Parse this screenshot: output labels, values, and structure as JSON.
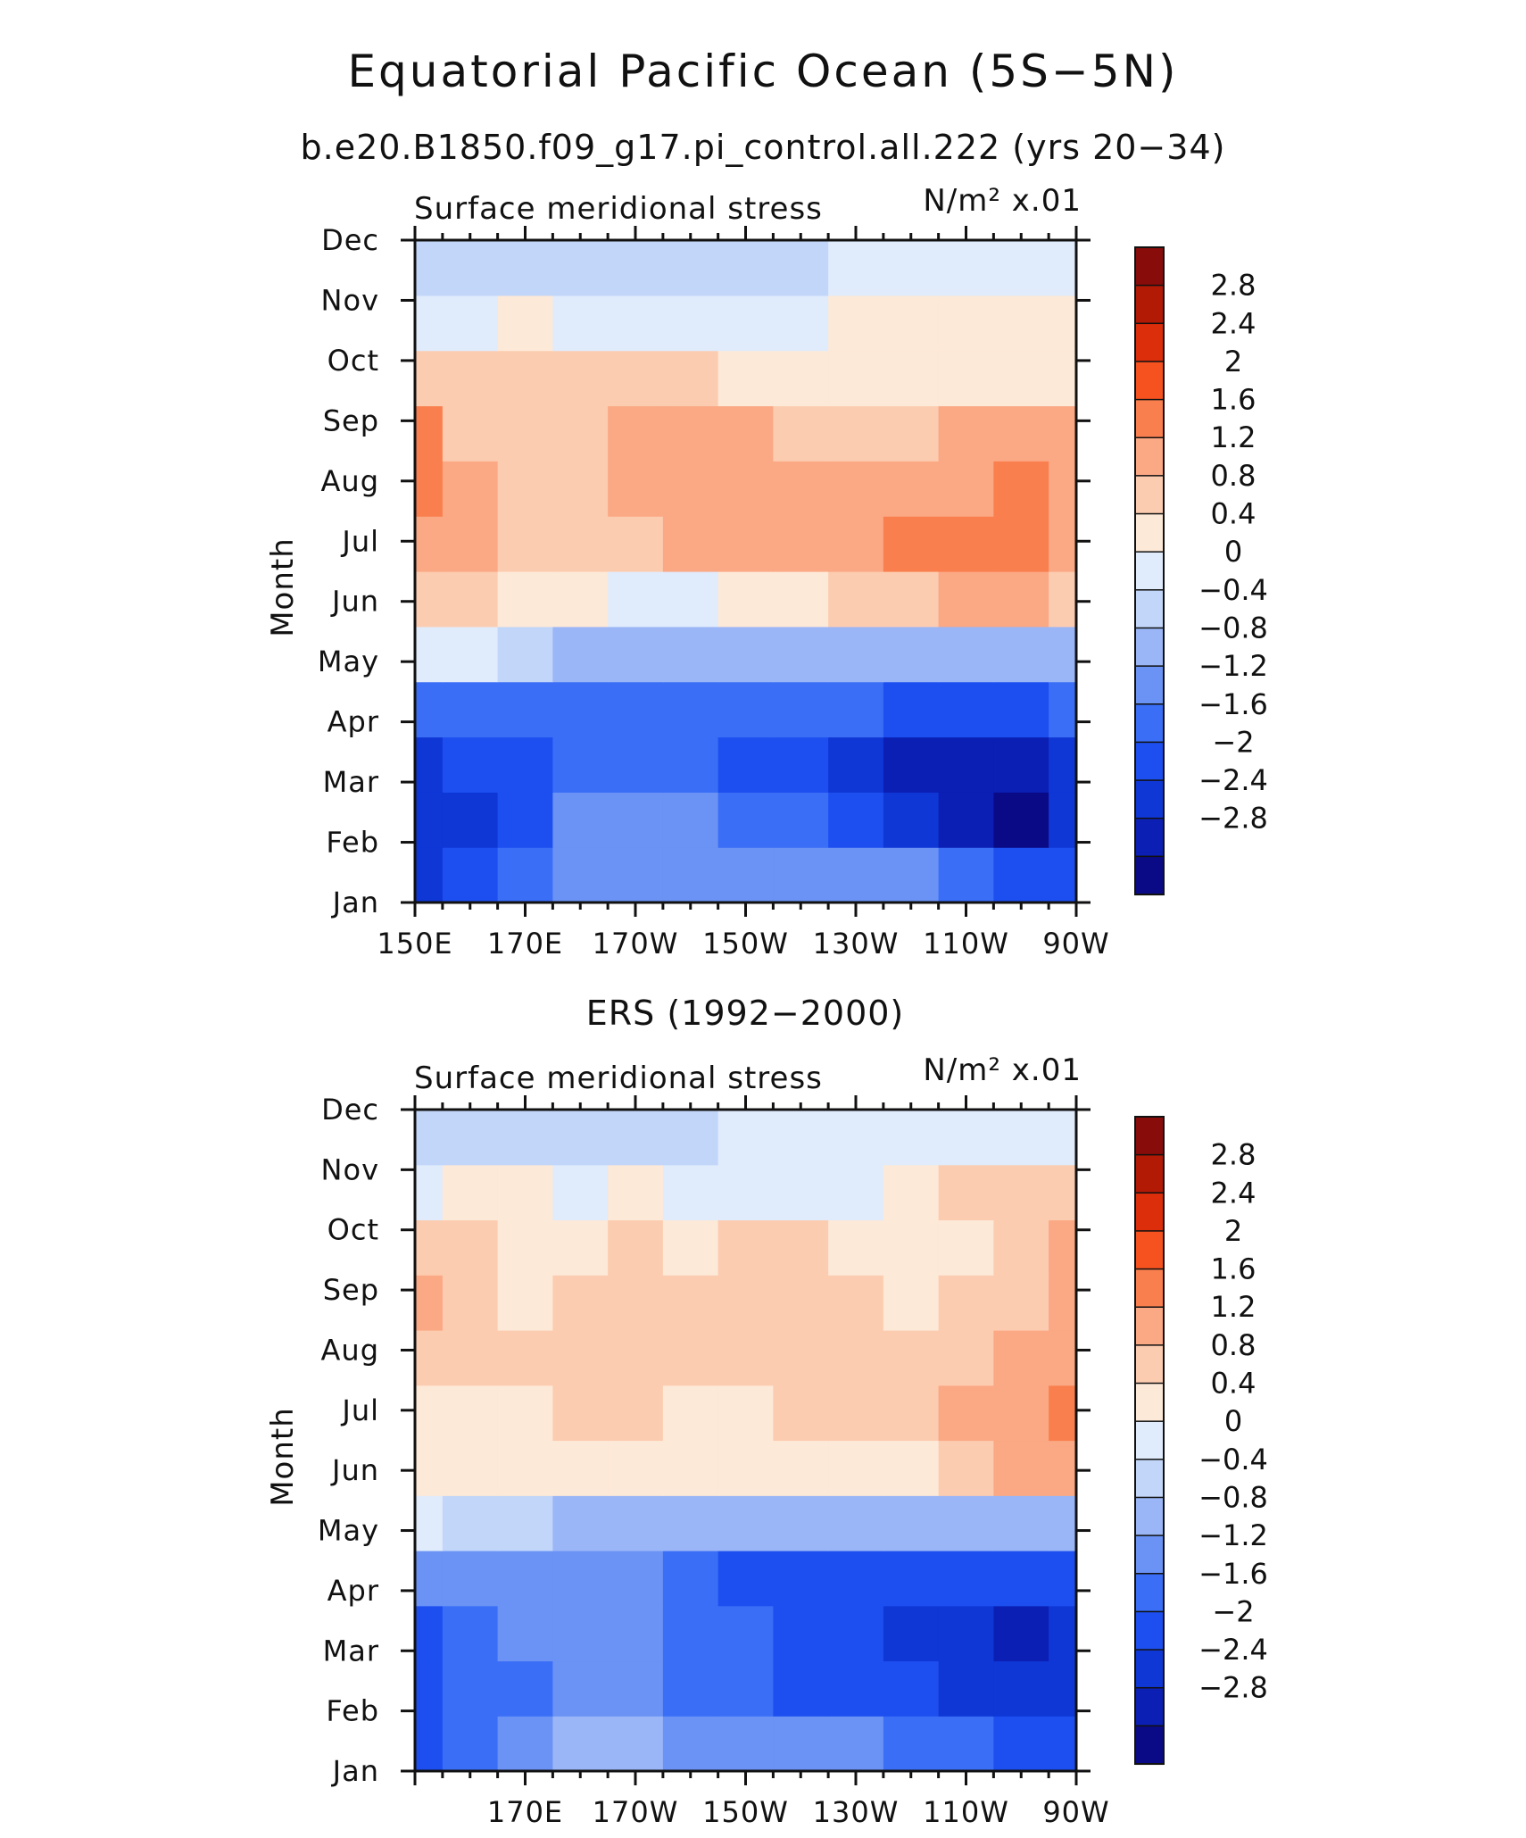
{
  "figure": {
    "title": "Equatorial Pacific Ocean (5S−5N)",
    "subtitle": "b.e20.B1850.f09_g17.pi_control.all.222 (yrs 20−34)"
  },
  "colors": {
    "levels": [
      "#0a0a86",
      "#0b1fb4",
      "#0f37d6",
      "#1d4ff0",
      "#3a6ef6",
      "#6a93f5",
      "#9ab6f7",
      "#c2d6f9",
      "#e0ebfb",
      "#fde9d8",
      "#fcccb0",
      "#fba884",
      "#fa7f4e",
      "#f5521f",
      "#dc2e0b",
      "#b31a06",
      "#880c0a"
    ],
    "frame": "#111111"
  },
  "chart_data": [
    {
      "type": "heatmap",
      "panel_label": "",
      "field_label": "Surface meridional stress",
      "units": "N/m² x.01",
      "xlabel": "",
      "ylabel": "Month",
      "x": [
        150,
        160,
        170,
        180,
        190,
        200,
        210,
        220,
        230,
        240,
        250,
        260,
        270
      ],
      "x_tick_labels": [
        "150E",
        "170E",
        "170W",
        "150W",
        "130W",
        "110W",
        "90W"
      ],
      "y_tick_labels": [
        "Jan",
        "Feb",
        "Mar",
        "Apr",
        "May",
        "Jun",
        "Jul",
        "Aug",
        "Sep",
        "Oct",
        "Nov",
        "Dec"
      ],
      "z": [
        [
          -2.3,
          -2.0,
          -1.5,
          -1.0,
          -0.9,
          -1.0,
          -1.0,
          -1.0,
          -1.1,
          -1.2,
          -1.4,
          -1.7,
          -2.0
        ],
        [
          -2.3,
          -2.1,
          -1.7,
          -1.2,
          -1.0,
          -1.2,
          -1.4,
          -1.6,
          -1.9,
          -2.3,
          -2.7,
          -2.9,
          -2.4
        ],
        [
          -2.2,
          -2.0,
          -1.8,
          -1.6,
          -1.4,
          -1.5,
          -1.7,
          -1.9,
          -2.1,
          -2.5,
          -2.8,
          -2.8,
          -2.3
        ],
        [
          -1.3,
          -1.5,
          -1.6,
          -1.5,
          -1.3,
          -1.3,
          -1.4,
          -1.5,
          -1.6,
          -1.7,
          -1.8,
          -1.7,
          -1.5
        ],
        [
          0.3,
          0.1,
          -0.3,
          -0.6,
          -0.8,
          -0.8,
          -0.7,
          -0.6,
          -0.6,
          -0.6,
          -0.7,
          -0.7,
          -0.7
        ],
        [
          1.1,
          0.8,
          0.6,
          0.5,
          0.3,
          0.3,
          0.4,
          0.6,
          0.8,
          1.0,
          1.2,
          1.2,
          1.0
        ],
        [
          1.5,
          1.2,
          1.0,
          0.9,
          1.1,
          1.3,
          1.4,
          1.4,
          1.5,
          1.6,
          1.8,
          1.9,
          1.4
        ],
        [
          1.9,
          1.2,
          1.1,
          1.1,
          1.4,
          1.4,
          1.4,
          1.4,
          1.3,
          1.3,
          1.5,
          1.7,
          1.4
        ],
        [
          1.7,
          1.1,
          1.1,
          1.1,
          1.2,
          1.3,
          1.3,
          1.1,
          1.0,
          1.1,
          1.2,
          1.3,
          1.2
        ],
        [
          0.9,
          0.9,
          0.8,
          0.8,
          0.8,
          0.8,
          0.7,
          0.7,
          0.7,
          0.7,
          0.7,
          0.7,
          0.7
        ],
        [
          0.2,
          0.3,
          0.4,
          0.3,
          0.3,
          0.2,
          0.2,
          0.2,
          0.4,
          0.4,
          0.4,
          0.4,
          0.4
        ],
        [
          -0.3,
          -0.2,
          -0.2,
          -0.1,
          -0.1,
          -0.2,
          -0.2,
          -0.1,
          0.2,
          0.2,
          0.2,
          0.2,
          0.2
        ]
      ],
      "levels": [
        -2.8,
        -2.4,
        -2.0,
        -1.6,
        -1.2,
        -0.8,
        -0.4,
        0,
        0.4,
        0.8,
        1.2,
        1.6,
        2.0,
        2.4,
        2.8
      ],
      "colorbar_labels": [
        "2.8",
        "2.4",
        "2",
        "1.6",
        "1.2",
        "0.8",
        "0.4",
        "0",
        "−0.4",
        "−0.8",
        "−1.2",
        "−1.6",
        "−2",
        "−2.4",
        "−2.8"
      ]
    },
    {
      "type": "heatmap",
      "panel_label": "ERS (1992−2000)",
      "field_label": "Surface meridional stress",
      "units": "N/m² x.01",
      "xlabel": "",
      "ylabel": "Month",
      "x": [
        150,
        160,
        170,
        180,
        190,
        200,
        210,
        220,
        230,
        240,
        250,
        260,
        270
      ],
      "x_tick_labels": [
        "170E",
        "170W",
        "150W",
        "130W",
        "110W",
        "90W"
      ],
      "y_tick_labels": [
        "Jan",
        "Feb",
        "Mar",
        "Apr",
        "May",
        "Jun",
        "Jul",
        "Aug",
        "Sep",
        "Oct",
        "Nov",
        "Dec"
      ],
      "z": [
        [
          -1.7,
          -1.5,
          -1.1,
          -0.7,
          -0.8,
          -0.9,
          -1.0,
          -1.0,
          -1.2,
          -1.4,
          -1.5,
          -1.7,
          -1.8
        ],
        [
          -2.0,
          -1.6,
          -1.3,
          -1.0,
          -1.1,
          -1.3,
          -1.5,
          -1.7,
          -1.9,
          -2.0,
          -2.2,
          -2.3,
          -2.3
        ],
        [
          -1.9,
          -1.5,
          -1.2,
          -1.1,
          -1.2,
          -1.5,
          -1.6,
          -1.8,
          -2.0,
          -2.2,
          -2.4,
          -2.6,
          -2.4
        ],
        [
          -0.9,
          -0.9,
          -1.0,
          -1.0,
          -1.2,
          -1.6,
          -1.7,
          -1.7,
          -1.8,
          -1.8,
          -1.9,
          -1.9,
          -1.8
        ],
        [
          0.1,
          -0.1,
          -0.3,
          -0.5,
          -0.6,
          -0.7,
          -0.8,
          -0.8,
          -0.8,
          -0.7,
          -0.7,
          -0.6,
          -0.5
        ],
        [
          0.6,
          0.5,
          0.6,
          0.6,
          0.5,
          0.5,
          0.5,
          0.6,
          0.5,
          0.6,
          0.8,
          1.2,
          1.3
        ],
        [
          0.7,
          0.7,
          0.7,
          0.8,
          0.8,
          0.6,
          0.7,
          0.9,
          0.9,
          1.0,
          1.2,
          1.5,
          1.6
        ],
        [
          0.8,
          0.9,
          0.8,
          0.9,
          0.9,
          1.0,
          1.0,
          1.0,
          1.0,
          1.0,
          1.1,
          1.4,
          1.5
        ],
        [
          1.2,
          1.0,
          0.7,
          0.8,
          0.9,
          0.9,
          0.9,
          0.9,
          0.8,
          0.7,
          0.8,
          1.0,
          1.3
        ],
        [
          0.9,
          0.9,
          0.7,
          0.7,
          0.8,
          0.7,
          0.8,
          0.8,
          0.7,
          0.6,
          0.7,
          1.0,
          1.2
        ],
        [
          0.2,
          0.4,
          0.6,
          0.3,
          0.4,
          0.3,
          0.3,
          0.3,
          0.3,
          0.4,
          0.8,
          0.9,
          0.8
        ],
        [
          -0.2,
          -0.3,
          -0.4,
          -0.3,
          -0.1,
          -0.2,
          0.0,
          0.1,
          0.1,
          0.1,
          0.2,
          0.2,
          0.1
        ]
      ],
      "levels": [
        -2.8,
        -2.4,
        -2.0,
        -1.6,
        -1.2,
        -0.8,
        -0.4,
        0,
        0.4,
        0.8,
        1.2,
        1.6,
        2.0,
        2.4,
        2.8
      ],
      "colorbar_labels": [
        "2.8",
        "2.4",
        "2",
        "1.6",
        "1.2",
        "0.8",
        "0.4",
        "0",
        "−0.4",
        "−0.8",
        "−1.2",
        "−1.6",
        "−2",
        "−2.4",
        "−2.8"
      ]
    }
  ]
}
